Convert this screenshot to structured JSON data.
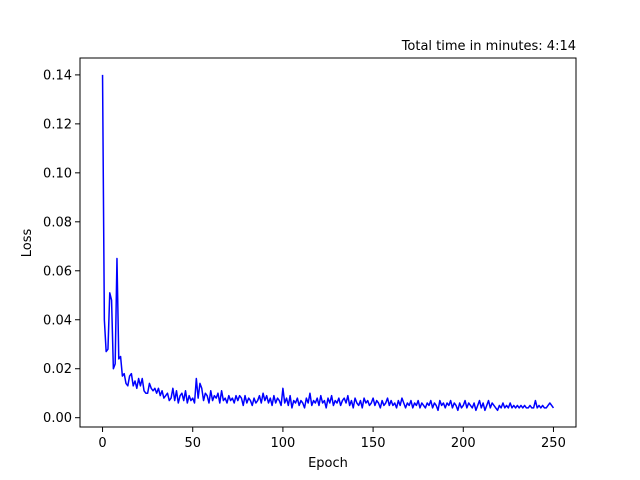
{
  "chart_data": {
    "type": "line",
    "title": "Total time in minutes: 4:14",
    "xlabel": "Epoch",
    "ylabel": "Loss",
    "x": [
      0,
      1,
      2,
      3,
      4,
      5,
      6,
      7,
      8,
      9,
      10,
      11,
      12,
      13,
      14,
      15,
      16,
      17,
      18,
      19,
      20,
      21,
      22,
      23,
      24,
      25,
      26,
      27,
      28,
      29,
      30,
      31,
      32,
      33,
      34,
      35,
      36,
      37,
      38,
      39,
      40,
      41,
      42,
      43,
      44,
      45,
      46,
      47,
      48,
      49,
      50,
      51,
      52,
      53,
      54,
      55,
      56,
      57,
      58,
      59,
      60,
      61,
      62,
      63,
      64,
      65,
      66,
      67,
      68,
      69,
      70,
      71,
      72,
      73,
      74,
      75,
      76,
      77,
      78,
      79,
      80,
      81,
      82,
      83,
      84,
      85,
      86,
      87,
      88,
      89,
      90,
      91,
      92,
      93,
      94,
      95,
      96,
      97,
      98,
      99,
      100,
      101,
      102,
      103,
      104,
      105,
      106,
      107,
      108,
      109,
      110,
      111,
      112,
      113,
      114,
      115,
      116,
      117,
      118,
      119,
      120,
      121,
      122,
      123,
      124,
      125,
      126,
      127,
      128,
      129,
      130,
      131,
      132,
      133,
      134,
      135,
      136,
      137,
      138,
      139,
      140,
      141,
      142,
      143,
      144,
      145,
      146,
      147,
      148,
      149,
      150,
      151,
      152,
      153,
      154,
      155,
      156,
      157,
      158,
      159,
      160,
      161,
      162,
      163,
      164,
      165,
      166,
      167,
      168,
      169,
      170,
      171,
      172,
      173,
      174,
      175,
      176,
      177,
      178,
      179,
      180,
      181,
      182,
      183,
      184,
      185,
      186,
      187,
      188,
      189,
      190,
      191,
      192,
      193,
      194,
      195,
      196,
      197,
      198,
      199,
      200,
      201,
      202,
      203,
      204,
      205,
      206,
      207,
      208,
      209,
      210,
      211,
      212,
      213,
      214,
      215,
      216,
      217,
      218,
      219,
      220,
      221,
      222,
      223,
      224,
      225,
      226,
      227,
      228,
      229,
      230,
      231,
      232,
      233,
      234,
      235,
      236,
      237,
      238,
      239,
      240,
      241,
      242,
      243,
      244,
      245,
      246,
      247,
      248,
      249,
      250
    ],
    "series": [
      {
        "color": "#0000ff",
        "values": [
          0.14,
          0.04,
          0.027,
          0.028,
          0.051,
          0.048,
          0.02,
          0.022,
          0.065,
          0.024,
          0.025,
          0.017,
          0.018,
          0.014,
          0.013,
          0.017,
          0.018,
          0.013,
          0.015,
          0.012,
          0.016,
          0.013,
          0.016,
          0.011,
          0.01,
          0.01,
          0.014,
          0.012,
          0.011,
          0.012,
          0.01,
          0.012,
          0.009,
          0.011,
          0.008,
          0.009,
          0.01,
          0.007,
          0.008,
          0.012,
          0.007,
          0.011,
          0.006,
          0.009,
          0.01,
          0.007,
          0.011,
          0.006,
          0.009,
          0.007,
          0.008,
          0.006,
          0.016,
          0.008,
          0.014,
          0.012,
          0.007,
          0.01,
          0.009,
          0.006,
          0.011,
          0.007,
          0.009,
          0.008,
          0.01,
          0.006,
          0.011,
          0.007,
          0.008,
          0.006,
          0.009,
          0.007,
          0.008,
          0.006,
          0.009,
          0.007,
          0.009,
          0.008,
          0.005,
          0.009,
          0.006,
          0.008,
          0.007,
          0.005,
          0.008,
          0.006,
          0.007,
          0.009,
          0.006,
          0.01,
          0.007,
          0.009,
          0.006,
          0.008,
          0.005,
          0.009,
          0.006,
          0.008,
          0.007,
          0.005,
          0.012,
          0.006,
          0.008,
          0.005,
          0.009,
          0.004,
          0.007,
          0.006,
          0.008,
          0.005,
          0.007,
          0.006,
          0.004,
          0.008,
          0.006,
          0.01,
          0.005,
          0.007,
          0.006,
          0.008,
          0.005,
          0.009,
          0.006,
          0.007,
          0.004,
          0.008,
          0.006,
          0.009,
          0.005,
          0.007,
          0.006,
          0.008,
          0.005,
          0.007,
          0.008,
          0.006,
          0.009,
          0.005,
          0.007,
          0.004,
          0.008,
          0.006,
          0.005,
          0.007,
          0.004,
          0.008,
          0.006,
          0.007,
          0.005,
          0.006,
          0.008,
          0.005,
          0.007,
          0.006,
          0.004,
          0.007,
          0.005,
          0.006,
          0.008,
          0.005,
          0.007,
          0.005,
          0.006,
          0.004,
          0.007,
          0.005,
          0.008,
          0.006,
          0.004,
          0.006,
          0.005,
          0.007,
          0.004,
          0.006,
          0.005,
          0.007,
          0.004,
          0.006,
          0.005,
          0.004,
          0.006,
          0.005,
          0.007,
          0.004,
          0.006,
          0.005,
          0.003,
          0.007,
          0.005,
          0.006,
          0.004,
          0.006,
          0.005,
          0.007,
          0.004,
          0.006,
          0.005,
          0.003,
          0.006,
          0.004,
          0.005,
          0.007,
          0.004,
          0.006,
          0.005,
          0.004,
          0.006,
          0.003,
          0.005,
          0.007,
          0.004,
          0.006,
          0.003,
          0.005,
          0.007,
          0.004,
          0.006,
          0.005,
          0.004,
          0.003,
          0.005,
          0.004,
          0.006,
          0.004,
          0.005,
          0.004,
          0.006,
          0.004,
          0.005,
          0.004,
          0.005,
          0.004,
          0.005,
          0.004,
          0.005,
          0.004,
          0.004,
          0.005,
          0.004,
          0.004,
          0.007,
          0.004,
          0.005,
          0.004,
          0.005,
          0.004,
          0.004,
          0.005,
          0.006,
          0.005,
          0.004
        ]
      }
    ],
    "xlim": [
      -12.5,
      262.5
    ],
    "xticks": [
      0,
      50,
      100,
      150,
      200,
      250
    ],
    "ylim": [
      -0.0038,
      0.1469
    ],
    "yticks": [
      {
        "value": 0,
        "label": "0.00"
      },
      0.02,
      0.04,
      0.06,
      0.08,
      {
        "value": 0.1,
        "label": "0.10"
      },
      0.12,
      0.14
    ]
  }
}
